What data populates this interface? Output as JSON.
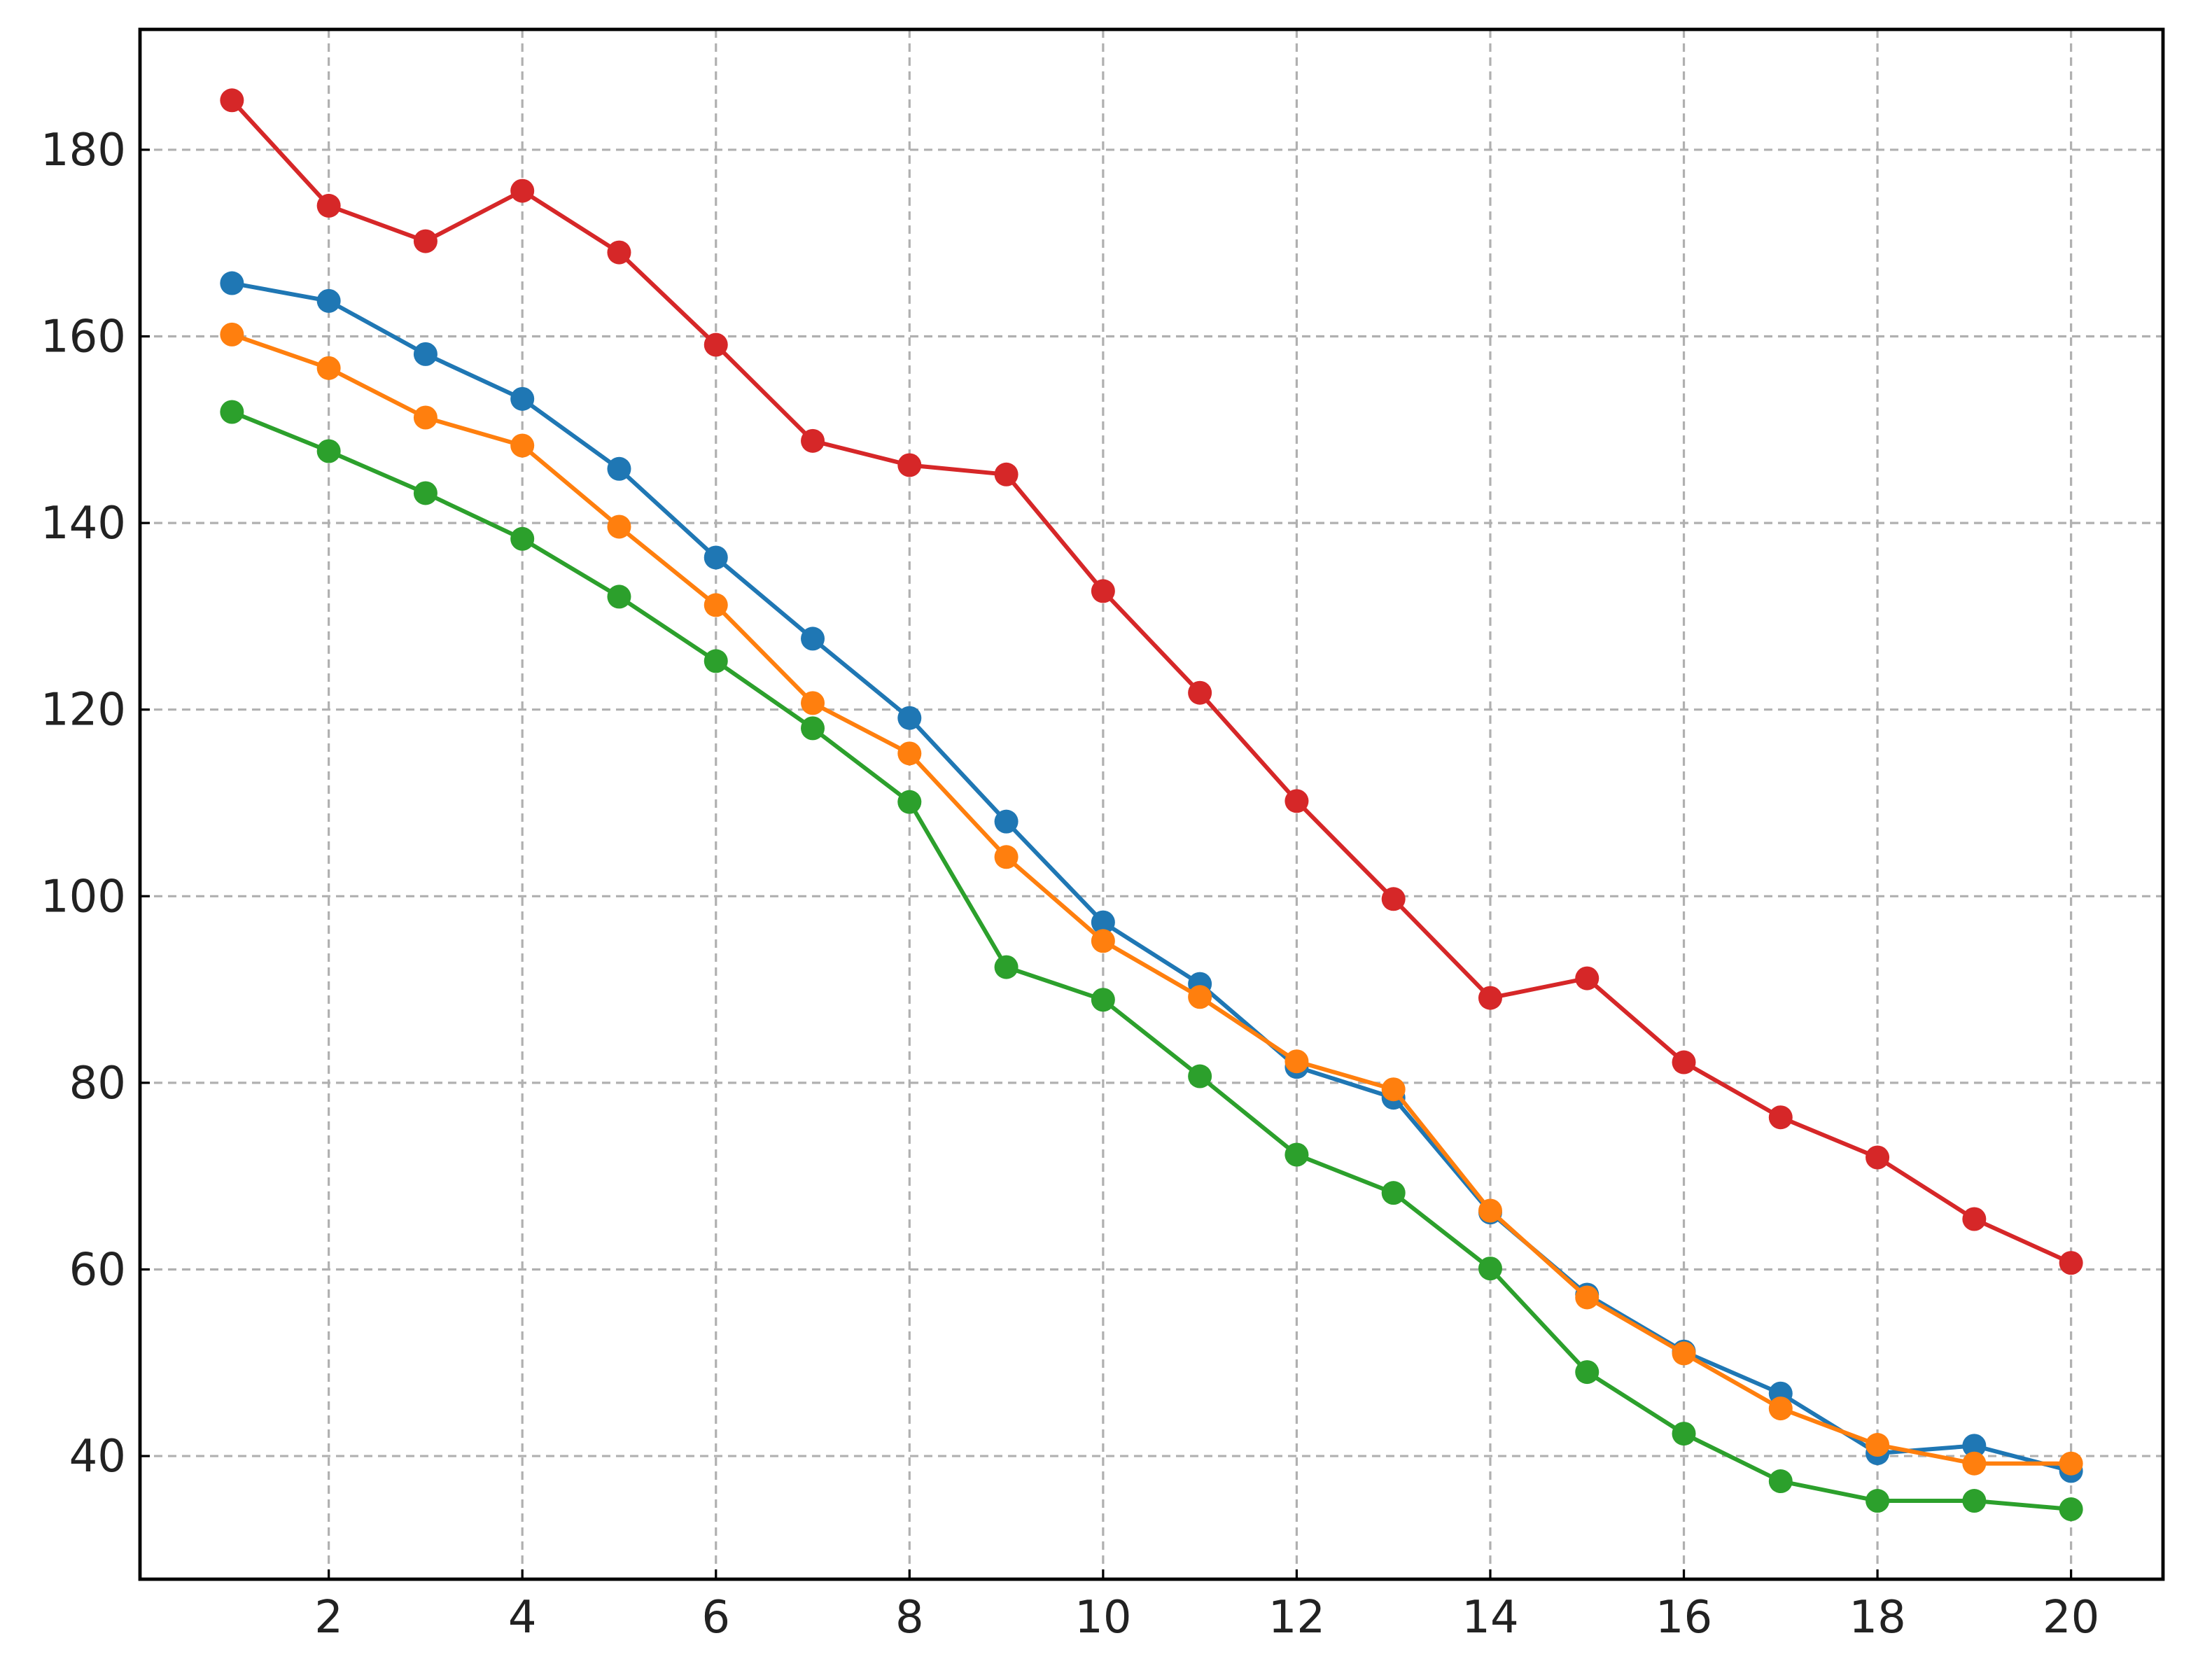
{
  "chart_data": {
    "type": "line",
    "x": [
      1,
      2,
      3,
      4,
      5,
      6,
      7,
      8,
      9,
      10,
      11,
      12,
      13,
      14,
      15,
      16,
      17,
      18,
      19,
      20
    ],
    "series": [
      {
        "color": "#1f77b4",
        "values": [
          165.7,
          163.8,
          158.1,
          153.3,
          145.8,
          136.3,
          127.6,
          119.1,
          108.0,
          97.2,
          90.6,
          81.7,
          78.4,
          66.1,
          57.3,
          51.2,
          46.7,
          40.3,
          41.1,
          38.4
        ]
      },
      {
        "color": "#ff7f0e",
        "values": [
          160.2,
          156.6,
          151.3,
          148.3,
          139.6,
          131.2,
          120.7,
          115.3,
          104.2,
          95.2,
          89.2,
          82.3,
          79.3,
          66.3,
          57.0,
          51.0,
          45.1,
          41.2,
          39.2,
          39.2
        ]
      },
      {
        "color": "#2ca02c",
        "values": [
          151.9,
          147.7,
          143.2,
          138.3,
          132.1,
          125.2,
          118.0,
          110.1,
          92.4,
          88.9,
          80.7,
          72.3,
          68.2,
          60.1,
          49.0,
          42.4,
          37.3,
          35.2,
          35.2,
          34.3
        ]
      },
      {
        "color": "#d62728",
        "values": [
          185.3,
          174.0,
          170.2,
          175.6,
          169.0,
          159.1,
          148.8,
          146.2,
          145.2,
          132.7,
          121.8,
          110.2,
          99.7,
          89.1,
          91.2,
          82.2,
          76.3,
          72.0,
          65.4,
          60.7
        ]
      }
    ],
    "xlim": [
      0.05,
      20.95
    ],
    "xticks": [
      2,
      4,
      6,
      8,
      10,
      12,
      14,
      16,
      18,
      20
    ],
    "ylim": [
      26.8,
      192.9
    ],
    "yticks": [
      40,
      60,
      80,
      100,
      120,
      140,
      160,
      180
    ],
    "grid": true
  }
}
